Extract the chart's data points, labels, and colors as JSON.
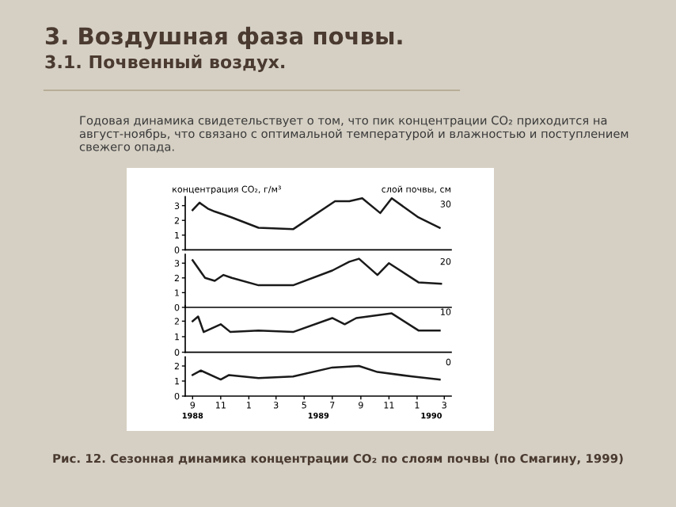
{
  "chart_data": [
    {
      "type": "line",
      "title": "3. Воздушная фаза почвы.",
      "subtitle": "3.1. Почвенный воздух.",
      "ylabel": "концентрация CO₂, г/м³",
      "legend_title": "слой почвы, см",
      "annotations": [
        "Годовая динамика свидетельствует о том, что пик концентрации CO₂ приходится на август-ноябрь, что связано с оптимальной температурой и влажностью и поступлением свежего опада.",
        "Рис. 12. Сезонная динамика концентрации CO₂ по слоям почвы (по Смагину, 1999)"
      ],
      "series": [
        {
          "name": "30",
          "color": "#1a1a1a",
          "x": [
            "1988-09-01",
            "1988-09-16",
            "1988-10-04",
            "1988-10-19",
            "1988-11-07",
            "1988-11-25",
            "1989-01-22",
            "1989-04-07",
            "1989-07-07",
            "1989-08-07",
            "1989-09-04",
            "1989-10-13",
            "1989-11-07",
            "1990-01-04",
            "1990-02-19"
          ],
          "values": [
            2.7,
            3.2,
            2.8,
            2.6,
            2.4,
            2.2,
            1.5,
            1.4,
            3.3,
            3.3,
            3.5,
            2.5,
            3.5,
            2.2,
            1.5
          ]
        }
      ],
      "xlim": [
        "1988-08-16",
        "1990-03-16"
      ],
      "ylim": [
        0,
        3.6
      ],
      "yticks": [
        0,
        1,
        2,
        3
      ],
      "tick_labels": "y",
      "grid": false,
      "legend": false
    },
    {
      "type": "line",
      "series": [
        {
          "name": "20",
          "color": "#1a1a1a",
          "x": [
            "1988-09-01",
            "1988-09-28",
            "1988-10-19",
            "1988-11-07",
            "1988-11-25",
            "1989-01-22",
            "1989-04-07",
            "1989-07-01",
            "1989-08-07",
            "1989-08-28",
            "1989-10-07",
            "1989-11-01",
            "1990-01-04",
            "1990-02-22"
          ],
          "values": [
            3.2,
            2.0,
            1.8,
            2.2,
            2.0,
            1.5,
            1.5,
            2.5,
            3.1,
            3.3,
            2.2,
            3.0,
            1.7,
            1.6
          ]
        }
      ],
      "xlim": [
        "1988-08-16",
        "1990-03-16"
      ],
      "ylim": [
        0,
        3.6
      ],
      "yticks": [
        0,
        1,
        2,
        3
      ],
      "tick_labels": "y",
      "grid": false,
      "legend": false
    },
    {
      "type": "line",
      "series": [
        {
          "name": "10",
          "color": "#1a1a1a",
          "x": [
            "1988-09-01",
            "1988-09-13",
            "1988-09-25",
            "1988-11-01",
            "1988-11-22",
            "1989-01-22",
            "1989-04-07",
            "1989-07-01",
            "1989-07-28",
            "1989-08-22",
            "1989-11-07",
            "1990-01-04",
            "1990-02-19"
          ],
          "values": [
            2.0,
            2.3,
            1.3,
            1.8,
            1.3,
            1.4,
            1.3,
            2.2,
            1.8,
            2.2,
            2.5,
            1.4,
            1.4
          ]
        }
      ],
      "xlim": [
        "1988-08-16",
        "1990-03-16"
      ],
      "ylim": [
        0,
        3.0
      ],
      "yticks": [
        0,
        1,
        2
      ],
      "tick_labels": "y",
      "grid": false,
      "legend": false
    },
    {
      "type": "line",
      "series": [
        {
          "name": "0",
          "color": "#1a1a1a",
          "x": [
            "1988-09-01",
            "1988-09-19",
            "1988-11-01",
            "1988-11-19",
            "1989-01-22",
            "1989-04-07",
            "1989-07-01",
            "1989-08-28",
            "1989-10-07",
            "1989-12-22",
            "1990-02-19"
          ],
          "values": [
            1.4,
            1.7,
            1.1,
            1.4,
            1.2,
            1.3,
            1.9,
            2.0,
            1.6,
            1.3,
            1.1
          ]
        }
      ],
      "xlim": [
        "1988-08-16",
        "1990-03-16"
      ],
      "ylim": [
        0,
        2.6
      ],
      "yticks": [
        0,
        1,
        2
      ],
      "xticks": [
        {
          "value": "1988-09",
          "label": "9"
        },
        {
          "value": "1988-11",
          "label": "11"
        },
        {
          "value": "1989-01",
          "label": "1"
        },
        {
          "value": "1989-03",
          "label": "3"
        },
        {
          "value": "1989-05",
          "label": "5"
        },
        {
          "value": "1989-07",
          "label": "7"
        },
        {
          "value": "1989-09",
          "label": "9"
        },
        {
          "value": "1989-11",
          "label": "11"
        },
        {
          "value": "1990-01",
          "label": "1"
        },
        {
          "value": "1990-03",
          "label": "3"
        }
      ],
      "x2lim": [
        "1988-08-16",
        "1990-03-16"
      ],
      "x2ticks": [
        {
          "value": "1988-09",
          "label": "1988"
        },
        {
          "value": "1989-06",
          "label": "1989"
        },
        {
          "value": "1990-02",
          "label": "1990"
        }
      ],
      "grid": false,
      "legend": false
    }
  ]
}
